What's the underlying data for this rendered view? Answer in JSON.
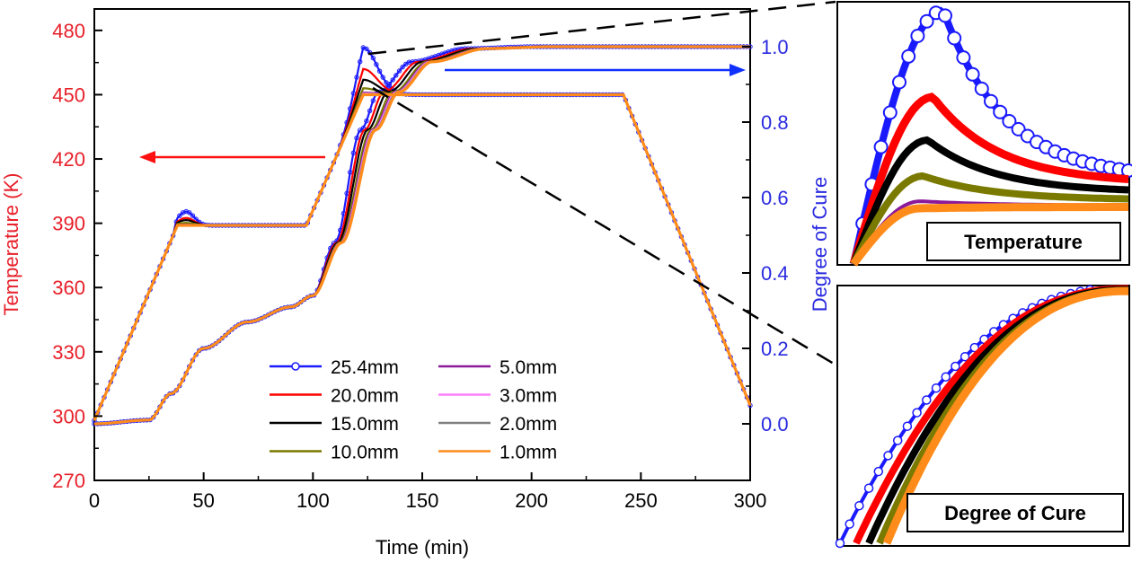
{
  "chart_data": [
    {
      "type": "line",
      "xlabel": "Time (min)",
      "ylabel_left": "Temperature (K)",
      "ylabel_right": "Degree of Cure",
      "xlim": [
        0,
        300
      ],
      "ylim_left": [
        270,
        490
      ],
      "ylim_right": [
        -0.15,
        1.1
      ],
      "x_ticks": [
        "0",
        "50",
        "100",
        "150",
        "200",
        "250",
        "300"
      ],
      "y_left_ticks": [
        "270",
        "300",
        "330",
        "360",
        "390",
        "420",
        "450",
        "480"
      ],
      "y_right_ticks": [
        "0.0",
        "0.2",
        "0.4",
        "0.6",
        "0.8",
        "1.0"
      ],
      "legend_position": "bottom-center",
      "grid": false,
      "left_axis_color": "#e8202a",
      "right_axis_color": "#2a2ae0",
      "series": [
        {
          "name": "25.4mm",
          "color": "#1a1aff",
          "marker": "circle-open",
          "temp_overshoot": 22,
          "stage1_bump": 6.5,
          "cure_delay": 0
        },
        {
          "name": "20.0mm",
          "color": "#ff0000",
          "marker": "none",
          "temp_overshoot": 12,
          "stage1_bump": 3.5,
          "cure_delay": 3
        },
        {
          "name": "15.0mm",
          "color": "#000000",
          "marker": "none",
          "temp_overshoot": 7,
          "stage1_bump": 2.5,
          "cure_delay": 5
        },
        {
          "name": "10.0mm",
          "color": "#7a7a00",
          "marker": "none",
          "temp_overshoot": 3,
          "stage1_bump": 1.2,
          "cure_delay": 7
        },
        {
          "name": "5.0mm",
          "color": "#8a1a9a",
          "marker": "none",
          "temp_overshoot": 1,
          "stage1_bump": 0.4,
          "cure_delay": 8
        },
        {
          "name": "3.0mm",
          "color": "#ff80ff",
          "marker": "none",
          "temp_overshoot": 0.6,
          "stage1_bump": 0.2,
          "cure_delay": 8.5
        },
        {
          "name": "2.0mm",
          "color": "#808080",
          "marker": "none",
          "temp_overshoot": 0.3,
          "stage1_bump": 0.1,
          "cure_delay": 9
        },
        {
          "name": "1.0mm",
          "color": "#ff8c1a",
          "marker": "none",
          "temp_overshoot": 0,
          "stage1_bump": 0,
          "cure_delay": 9.5
        }
      ],
      "temperature_profile": {
        "x": [
          0,
          38,
          97,
          123,
          242,
          300
        ],
        "y": [
          298,
          389,
          389,
          450,
          450,
          305
        ]
      },
      "cure_profile": {
        "x": [
          0,
          25,
          35,
          50,
          70,
          90,
          100,
          110,
          122,
          130,
          145,
          170,
          200,
          300
        ],
        "y": [
          0.0,
          0.01,
          0.08,
          0.2,
          0.27,
          0.31,
          0.34,
          0.48,
          0.78,
          0.88,
          0.96,
          0.995,
          1.0,
          1.0
        ]
      }
    },
    {
      "type": "line",
      "title": "Temperature",
      "description_series": [
        "25.4mm",
        "20.0mm",
        "15.0mm",
        "10.0mm",
        "5.0mm",
        "1.0mm"
      ]
    },
    {
      "type": "line",
      "title": "Degree of Cure",
      "description_series": [
        "25.4mm",
        "20.0mm",
        "15.0mm",
        "10.0mm",
        "1.0mm"
      ]
    }
  ]
}
